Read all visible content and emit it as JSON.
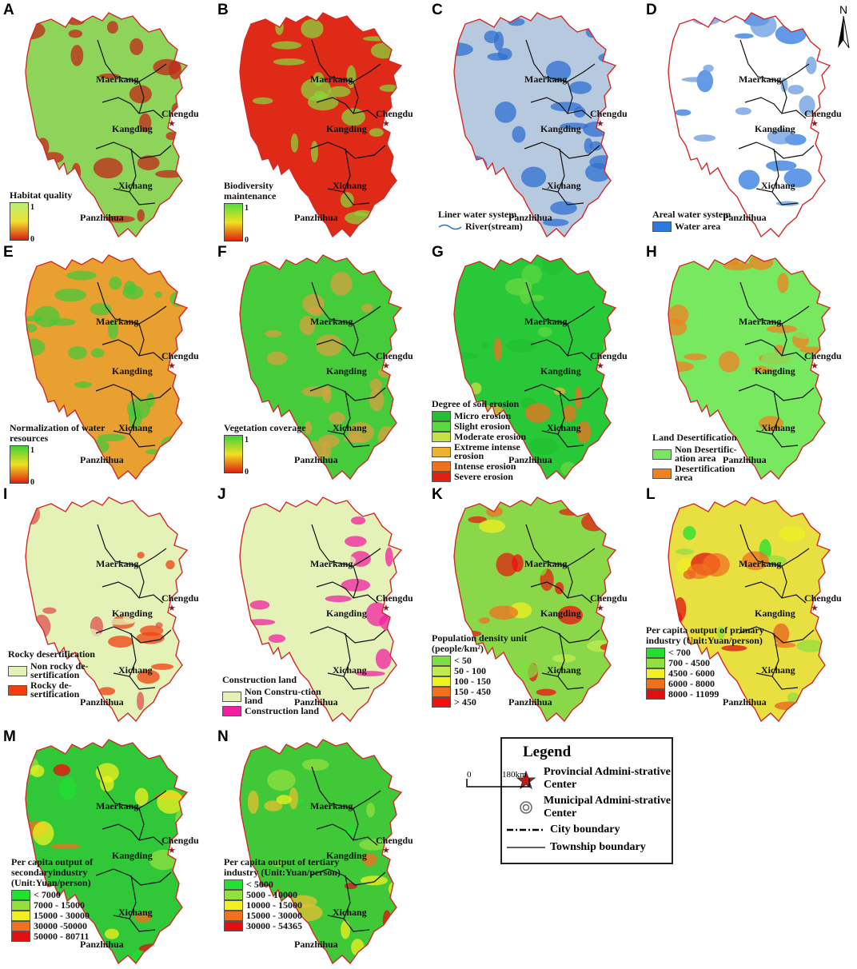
{
  "north_label": "N",
  "cities": {
    "maerkang": "Maerkang",
    "kangding": "Kangding",
    "chengdu": "Chengdu",
    "xichang": "Xichang",
    "panzhihua": "Panzhihua"
  },
  "panels": [
    {
      "id": "A",
      "legend": {
        "type": "gradient",
        "title": "Habitat quality",
        "high": "1",
        "low": "0",
        "colors": [
          "#b8f07a",
          "#f0e030",
          "#d62010"
        ]
      },
      "base": "#8fd45a",
      "accent": "#c0281a"
    },
    {
      "id": "B",
      "legend": {
        "type": "gradient",
        "title": "Biodiversity maintenance",
        "high": "1",
        "low": "0",
        "colors": [
          "#52e03a",
          "#f0e020",
          "#e02010"
        ]
      },
      "base": "#e02a18",
      "accent": "#8ad43a"
    },
    {
      "id": "C",
      "legend": {
        "type": "line",
        "title": "Liner water system",
        "items": [
          {
            "label": "River(stream)",
            "color": "#2f6fd0"
          }
        ]
      },
      "base": "#b7c9df",
      "accent": "#2f6fd0"
    },
    {
      "id": "D",
      "legend": {
        "type": "classes",
        "title": "Areal water system",
        "items": [
          {
            "label": "Water area",
            "color": "#2f78e0"
          }
        ]
      },
      "base": "#ffffff",
      "accent": "#6a9be0"
    },
    {
      "id": "E",
      "legend": {
        "type": "gradient",
        "title": "Normalization of water resources",
        "high": "1",
        "low": "0",
        "colors": [
          "#3ed23a",
          "#f0e020",
          "#e02010"
        ]
      },
      "base": "#e8a030",
      "accent": "#46c83a"
    },
    {
      "id": "F",
      "legend": {
        "type": "gradient",
        "title": "Vegetation coverage",
        "high": "1",
        "low": "0",
        "colors": [
          "#3ed23a",
          "#f0e020",
          "#e02010"
        ]
      },
      "base": "#46cc3a",
      "accent": "#d8a040"
    },
    {
      "id": "G",
      "legend": {
        "type": "classes",
        "title": "Degree of soil erosion",
        "items": [
          {
            "label": "Micro erosion",
            "color": "#20c030"
          },
          {
            "label": "Slight erosion",
            "color": "#5ad840"
          },
          {
            "label": "Moderate erosion",
            "color": "#c8e040"
          },
          {
            "label": "Extreme intense erosion",
            "color": "#f0b030"
          },
          {
            "label": "Intense erosion",
            "color": "#f07020"
          },
          {
            "label": "Severe erosion",
            "color": "#e02010"
          }
        ]
      },
      "base": "#28c838",
      "accent": "#6ad840"
    },
    {
      "id": "H",
      "legend": {
        "type": "classes",
        "title": "Land Desertification",
        "items": [
          {
            "label": "Non Desertific-ation area",
            "color": "#78e860"
          },
          {
            "label": "Desertification area",
            "color": "#f08020"
          }
        ]
      },
      "base": "#78e860",
      "accent": "#f08020"
    },
    {
      "id": "I",
      "legend": {
        "type": "classes",
        "title": "Rocky desertification",
        "items": [
          {
            "label": "Non rocky de-sertification",
            "color": "#e4f2b8"
          },
          {
            "label": "Rocky de-sertification",
            "color": "#f04010"
          }
        ]
      },
      "base": "#e4f2b8",
      "accent": "#e05050"
    },
    {
      "id": "J",
      "legend": {
        "type": "classes",
        "title": "Construction land",
        "items": [
          {
            "label": "Non Constru-ction land",
            "color": "#e4f2b8"
          },
          {
            "label": "Construction land",
            "color": "#f020a0"
          }
        ]
      },
      "base": "#e4f2b8",
      "accent": "#f020a0"
    },
    {
      "id": "K",
      "legend": {
        "type": "classes",
        "title": "Population density unit  (people/km²)",
        "items": [
          {
            "label": "< 50",
            "color": "#7ee040"
          },
          {
            "label": "50 - 100",
            "color": "#c0ec50"
          },
          {
            "label": "100 - 150",
            "color": "#f0f020"
          },
          {
            "label": "150 - 450",
            "color": "#f07020"
          },
          {
            "label": "> 450",
            "color": "#f01010"
          }
        ]
      },
      "base": "#8ad84a",
      "accent": "#e02010"
    },
    {
      "id": "L",
      "legend": {
        "type": "classes",
        "title": "Per capita output of primary industry (Unit:Yuan/person)",
        "items": [
          {
            "label": "< 700",
            "color": "#20e030"
          },
          {
            "label": "700 - 4500",
            "color": "#90e040"
          },
          {
            "label": "4500 - 6000",
            "color": "#f0f020"
          },
          {
            "label": "6000 - 8000",
            "color": "#f07020"
          },
          {
            "label": "8000 - 11099",
            "color": "#e01010"
          }
        ]
      },
      "base": "#e8e040",
      "accent": "#e86020"
    },
    {
      "id": "M",
      "legend": {
        "type": "classes",
        "title": "Per capita output of secondaryindustry (Unit:Yuan/person)",
        "items": [
          {
            "label": "< 7000",
            "color": "#20e030"
          },
          {
            "label": "7000 - 15000",
            "color": "#90e040"
          },
          {
            "label": "15000 - 30000",
            "color": "#f0f020"
          },
          {
            "label": "30000 -50000",
            "color": "#f07020"
          },
          {
            "label": "50000 - 80711",
            "color": "#e01010"
          }
        ]
      },
      "base": "#30c838",
      "accent": "#f07020"
    },
    {
      "id": "N",
      "legend": {
        "type": "classes",
        "title": "Per capita output of tertiary industry (Unit:Yuan/person)",
        "items": [
          {
            "label": "< 5000",
            "color": "#20e030"
          },
          {
            "label": "5000 - 10000",
            "color": "#90e040"
          },
          {
            "label": "10000 - 15000",
            "color": "#f0f020"
          },
          {
            "label": "15000 - 30000",
            "color": "#f07020"
          },
          {
            "label": "30000 - 54365",
            "color": "#e01010"
          }
        ]
      },
      "base": "#40c838",
      "accent": "#e8c030"
    }
  ],
  "legend": {
    "title": "Legend",
    "items": [
      {
        "icon": "red-star-icon",
        "label": "Provincial Admini-strative Center"
      },
      {
        "icon": "double-circle-icon",
        "label": "Municipal Admini-strative Center"
      },
      {
        "icon": "dash-dot-line-icon",
        "label": "City boundary"
      },
      {
        "icon": "solid-line-icon",
        "label": "Township boundary"
      }
    ]
  },
  "scale": {
    "start": "0",
    "end": "180km"
  }
}
